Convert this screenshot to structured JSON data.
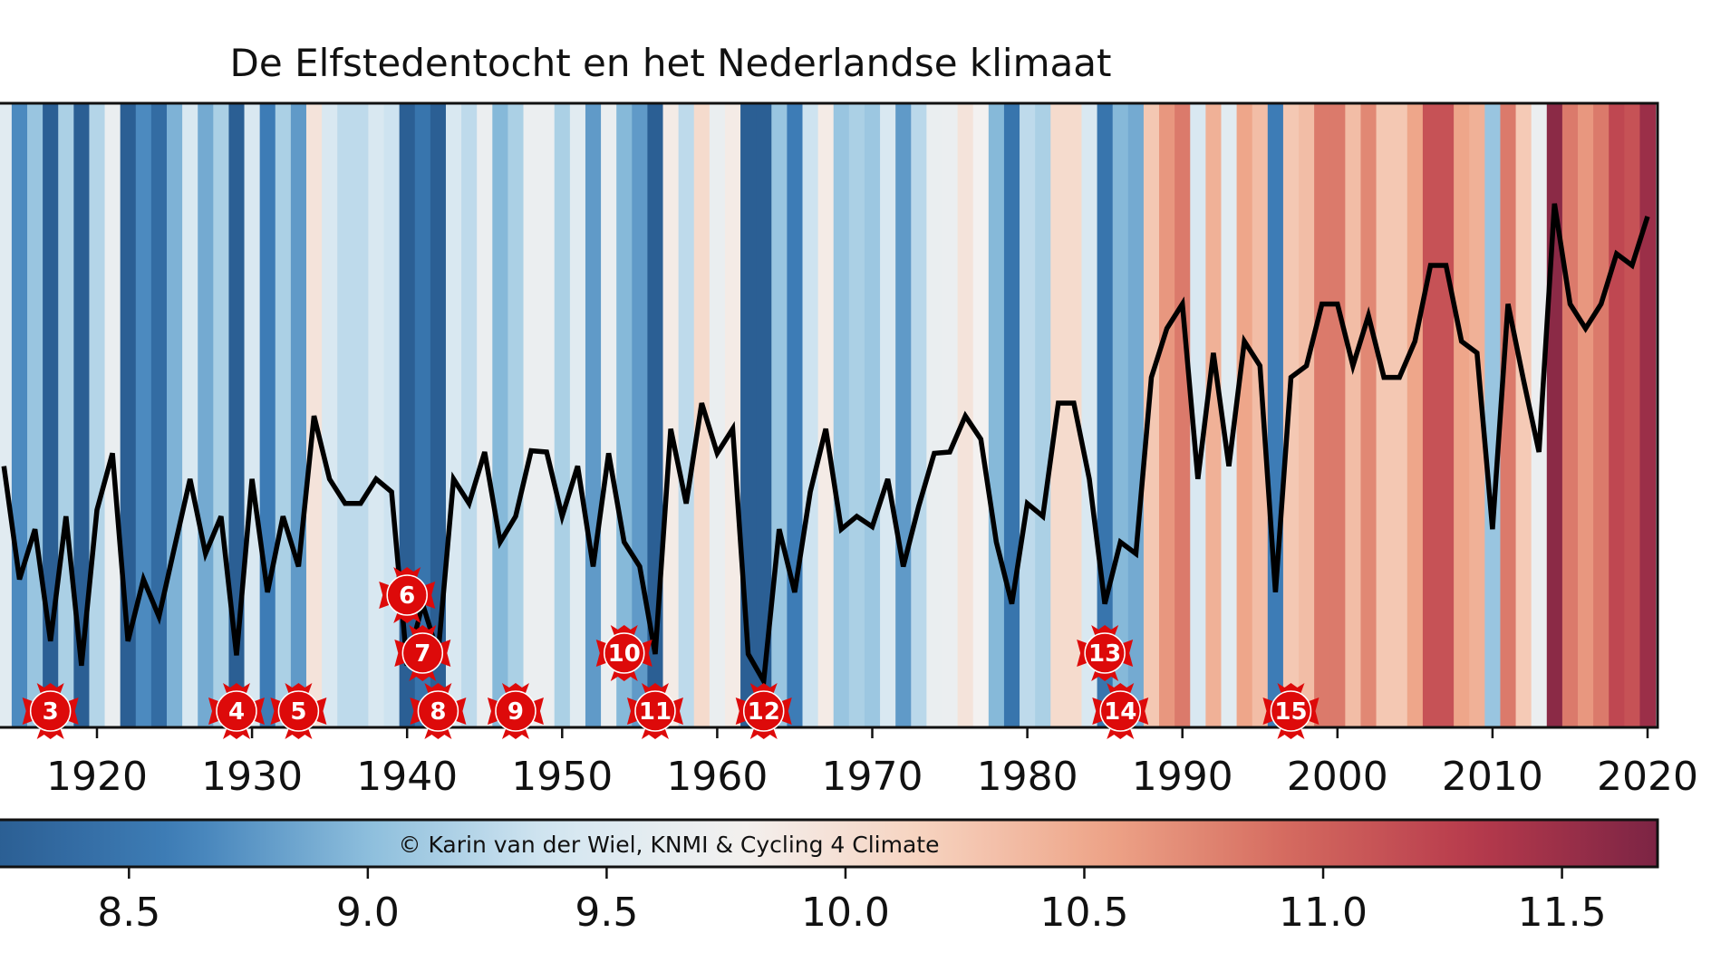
{
  "chart_data": {
    "type": "line",
    "title": "De Elfstedentocht en het Nederlandse klimaat",
    "xlabel": "",
    "ylabel": "",
    "credit": "© Karin van der Wiel, KNMI & Cycling 4 Climate",
    "xlim": [
      1913.7,
      2020.7
    ],
    "ylim": [
      7.53,
      12.38
    ],
    "grid": false,
    "x_ticks": [
      "1920",
      "1930",
      "1940",
      "1950",
      "1960",
      "1970",
      "1980",
      "1990",
      "2000",
      "2010",
      "2020"
    ],
    "background": "warming stripes colored by yearly value",
    "colorbar": {
      "range": [
        8.23,
        11.7
      ],
      "ticks": [
        "8.5",
        "9.0",
        "9.5",
        "10.0",
        "10.5",
        "11.0",
        "11.5"
      ],
      "colormap": [
        "#2b5f94",
        "#3f7fb9",
        "#8cbedc",
        "#d3e6f1",
        "#f3f1f0",
        "#f6d3c0",
        "#eea488",
        "#d46a5f",
        "#b73a4c",
        "#7c2444"
      ]
    },
    "line_color": "#000000",
    "x": [
      1914,
      1915,
      1916,
      1917,
      1918,
      1919,
      1920,
      1921,
      1922,
      1923,
      1924,
      1925,
      1926,
      1927,
      1928,
      1929,
      1930,
      1931,
      1932,
      1933,
      1934,
      1935,
      1936,
      1937,
      1938,
      1939,
      1940,
      1941,
      1942,
      1943,
      1944,
      1945,
      1946,
      1947,
      1948,
      1949,
      1950,
      1951,
      1952,
      1953,
      1954,
      1955,
      1956,
      1957,
      1958,
      1959,
      1960,
      1961,
      1962,
      1963,
      1964,
      1965,
      1966,
      1967,
      1968,
      1969,
      1970,
      1971,
      1972,
      1973,
      1974,
      1975,
      1976,
      1977,
      1978,
      1979,
      1980,
      1981,
      1982,
      1983,
      1984,
      1985,
      1986,
      1987,
      1988,
      1989,
      1990,
      1991,
      1992,
      1993,
      1994,
      1995,
      1996,
      1997,
      1998,
      1999,
      2000,
      2001,
      2002,
      2003,
      2004,
      2005,
      2006,
      2007,
      2008,
      2009,
      2010,
      2011,
      2012,
      2013,
      2014,
      2015,
      2016,
      2017,
      2018,
      2019,
      2020
    ],
    "values": [
      9.56,
      8.68,
      9.07,
      8.2,
      9.17,
      8.01,
      9.22,
      9.66,
      8.2,
      8.68,
      8.39,
      8.93,
      9.46,
      8.88,
      9.17,
      8.09,
      9.46,
      8.58,
      9.17,
      8.78,
      9.95,
      9.46,
      9.27,
      9.27,
      9.46,
      9.36,
      8.01,
      8.49,
      8.1,
      9.46,
      9.27,
      9.67,
      8.97,
      9.17,
      9.68,
      9.67,
      9.17,
      9.56,
      8.78,
      9.66,
      8.97,
      8.78,
      8.1,
      9.85,
      9.27,
      10.05,
      9.66,
      9.85,
      8.1,
      7.89,
      9.07,
      8.58,
      9.36,
      9.85,
      9.07,
      9.17,
      9.09,
      9.46,
      8.78,
      9.25,
      9.66,
      9.67,
      9.95,
      9.77,
      8.97,
      8.49,
      9.27,
      9.17,
      10.05,
      10.05,
      9.46,
      8.49,
      8.97,
      8.88,
      10.25,
      10.63,
      10.82,
      9.46,
      10.44,
      9.56,
      10.53,
      10.34,
      8.58,
      10.25,
      10.34,
      10.82,
      10.82,
      10.34,
      10.73,
      10.25,
      10.25,
      10.53,
      11.12,
      11.12,
      10.53,
      10.44,
      9.07,
      10.82,
      10.23,
      9.67,
      11.6,
      10.82,
      10.63,
      10.82,
      11.21,
      11.12,
      11.5
    ],
    "annotations": {
      "marker_color": "#dd0a0a",
      "events": [
        {
          "year": 1917,
          "label": "3"
        },
        {
          "year": 1929,
          "label": "4"
        },
        {
          "year": 1933,
          "label": "5"
        },
        {
          "year": 1940,
          "label": "6"
        },
        {
          "year": 1941,
          "label": "7"
        },
        {
          "year": 1942,
          "label": "8"
        },
        {
          "year": 1947,
          "label": "9"
        },
        {
          "year": 1954,
          "label": "10"
        },
        {
          "year": 1956,
          "label": "11"
        },
        {
          "year": 1963,
          "label": "12"
        },
        {
          "year": 1985,
          "label": "13"
        },
        {
          "year": 1986,
          "label": "14"
        },
        {
          "year": 1997,
          "label": "15"
        }
      ]
    }
  }
}
